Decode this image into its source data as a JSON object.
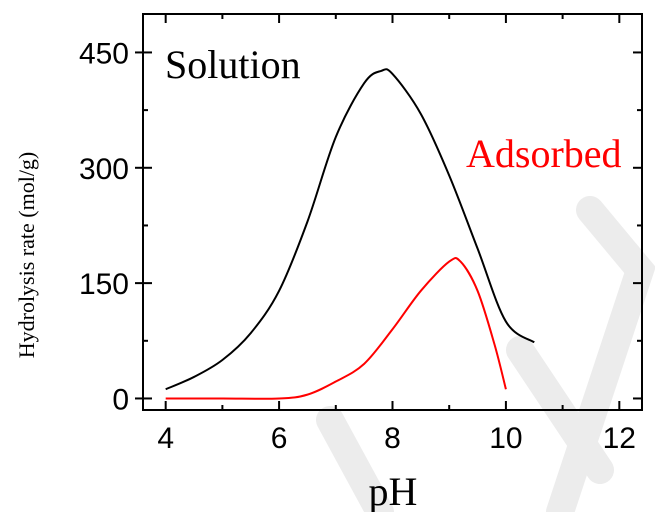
{
  "chart_data": {
    "type": "line",
    "title": "",
    "xlabel": "pH",
    "ylabel": "Hydrolysis rate (mol/g)",
    "xlim": [
      3.6,
      12.4
    ],
    "ylim": [
      -15,
      500
    ],
    "xticks": [
      4,
      6,
      8,
      10,
      12
    ],
    "yticks": [
      0,
      150,
      300,
      450
    ],
    "grid": false,
    "series": [
      {
        "name": "Solution",
        "color": "#000000",
        "x": [
          4.0,
          4.5,
          5.0,
          5.5,
          6.0,
          6.5,
          7.0,
          7.5,
          7.8,
          8.0,
          8.5,
          9.0,
          9.5,
          10.0,
          10.5
        ],
        "y": [
          12,
          28,
          50,
          85,
          140,
          230,
          340,
          410,
          426,
          422,
          370,
          290,
          195,
          100,
          73
        ]
      },
      {
        "name": "Adsorbed",
        "color": "#ff0000",
        "x": [
          4.0,
          5.0,
          6.0,
          6.5,
          7.0,
          7.5,
          8.0,
          8.5,
          9.0,
          9.2,
          9.5,
          9.8,
          10.0
        ],
        "y": [
          0,
          0,
          0,
          5,
          22,
          45,
          90,
          140,
          178,
          178,
          140,
          70,
          12
        ]
      }
    ]
  }
}
